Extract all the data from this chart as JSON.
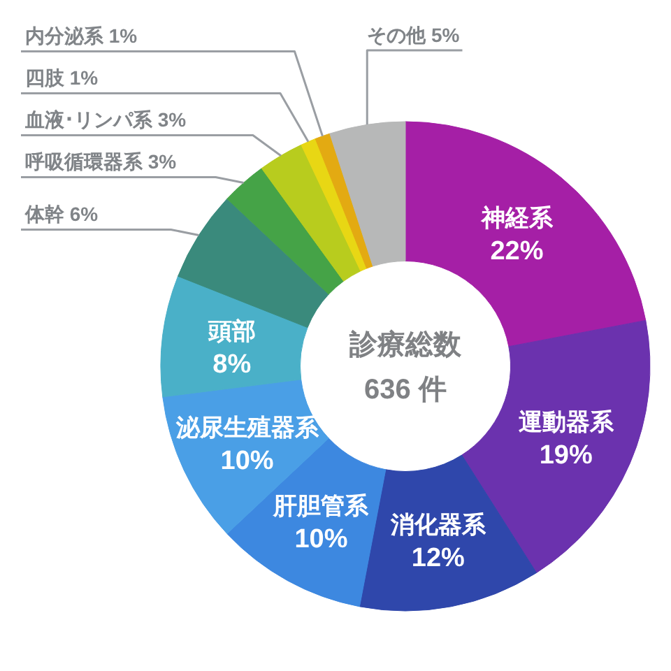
{
  "chart_data": {
    "type": "donut",
    "categories": [
      "神経系",
      "運動器系",
      "消化器系",
      "肝胆管系",
      "泌尿生殖器系",
      "頭部",
      "体幹",
      "呼吸循環器系",
      "血液･リンパ系",
      "四肢",
      "内分泌系",
      "その他"
    ],
    "values": [
      22,
      19,
      12,
      10,
      10,
      8,
      6,
      3,
      3,
      1,
      1,
      5
    ],
    "colors": [
      "#a51fa6",
      "#6b32ae",
      "#2f47ab",
      "#3d88e0",
      "#4a9fe6",
      "#4ab0c8",
      "#3a8a7c",
      "#45a347",
      "#b8cc1e",
      "#e8d714",
      "#e3aa12",
      "#b7b8b8"
    ],
    "value_labels": [
      "22%",
      "19%",
      "12%",
      "10%",
      "10%",
      "8%",
      "6%",
      "3%",
      "3%",
      "1%",
      "1%",
      "5%"
    ],
    "annotations": [
      "診療総数",
      "636 件"
    ]
  }
}
